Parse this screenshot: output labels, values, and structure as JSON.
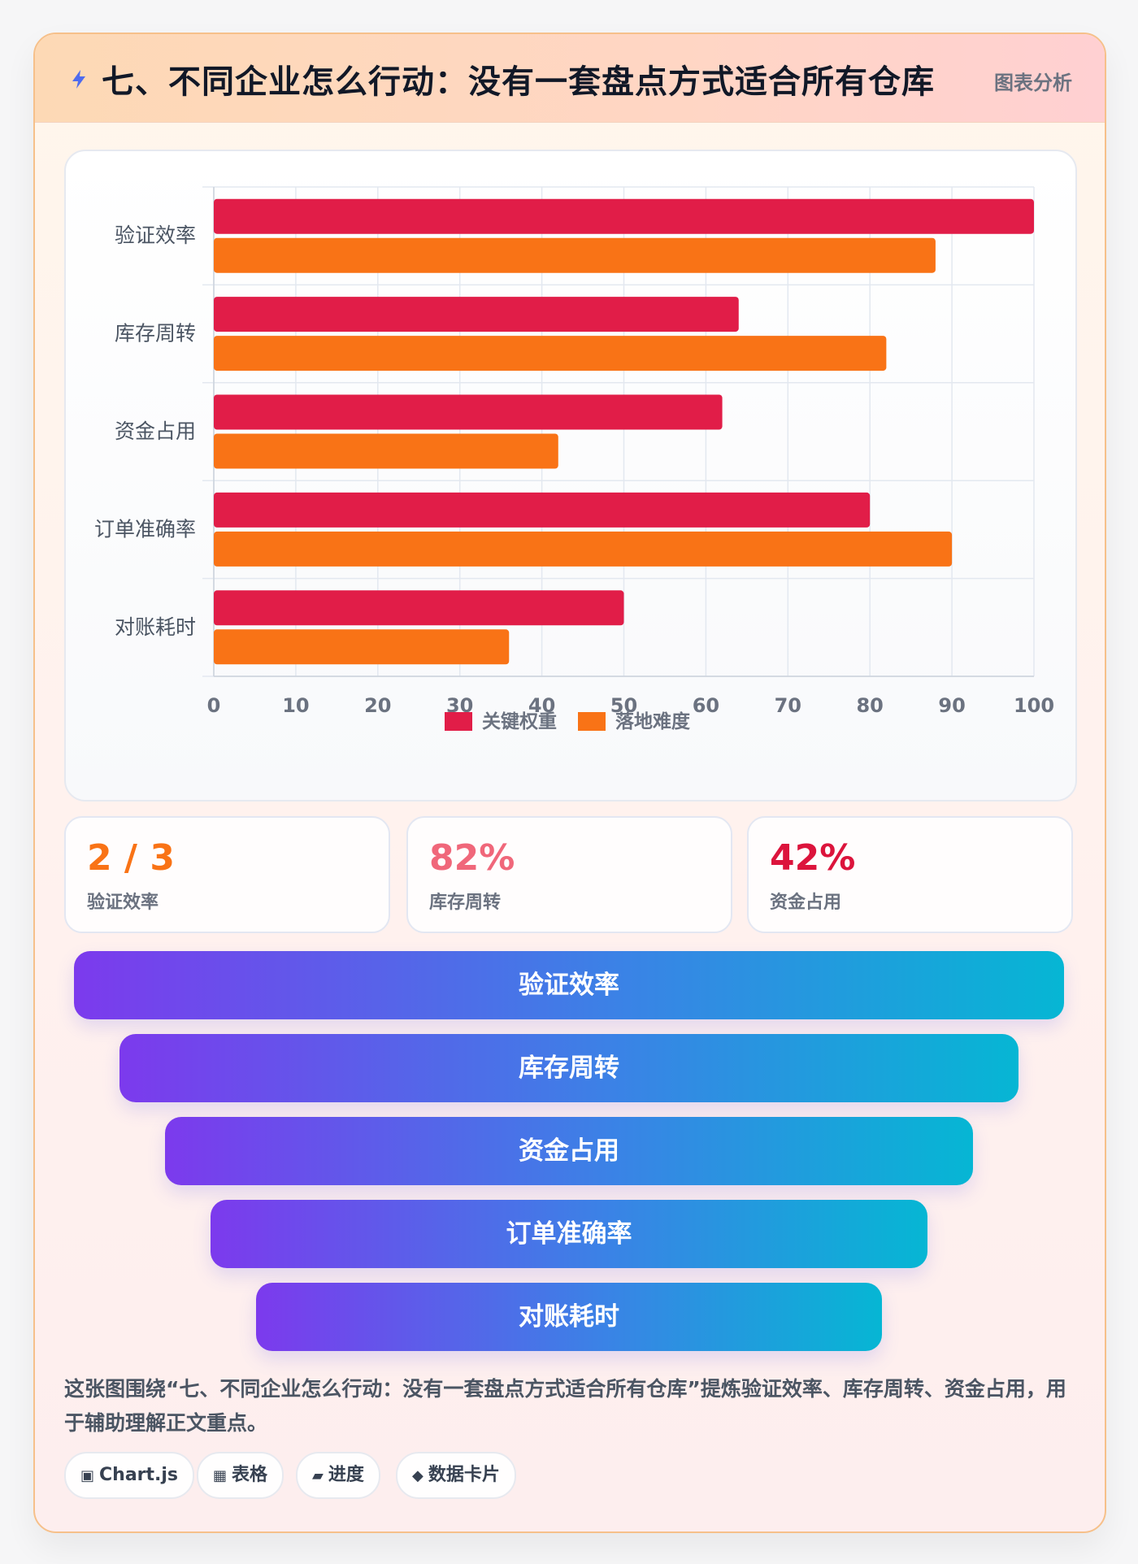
{
  "header": {
    "title": "七、不同企业怎么行动：没有一套盘点方式适合所有仓库",
    "tag": "图表分析",
    "icon": "bolt-icon"
  },
  "chart_data": {
    "type": "bar",
    "orientation": "horizontal",
    "categories": [
      "验证效率",
      "库存周转",
      "资金占用",
      "订单准确率",
      "对账耗时"
    ],
    "series": [
      {
        "name": "关键权重",
        "values": [
          100,
          64,
          62,
          80,
          50
        ],
        "color": "#e11d48"
      },
      {
        "name": "落地难度",
        "values": [
          88,
          82,
          42,
          90,
          36
        ],
        "color": "#f97316"
      }
    ],
    "xlim": [
      0,
      100
    ],
    "xticks": [
      0,
      10,
      20,
      30,
      40,
      50,
      60,
      70,
      80,
      90,
      100
    ],
    "grid": true,
    "legend": "bottom"
  },
  "stats": [
    {
      "value": "2 / 3",
      "label": "验证效率",
      "color": "#f97316"
    },
    {
      "value": "82%",
      "label": "库存周转",
      "color": "#f0677a"
    },
    {
      "value": "42%",
      "label": "资金占用",
      "color": "#dc143c"
    }
  ],
  "funnel": [
    "验证效率",
    "库存周转",
    "资金占用",
    "订单准确率",
    "对账耗时"
  ],
  "description": "这张图围绕“七、不同企业怎么行动：没有一套盘点方式适合所有仓库”提炼验证效率、库存周转、资金占用，用于辅助理解正文重点。",
  "chips": [
    {
      "icon": "▣",
      "label": "Chart.js"
    },
    {
      "icon": "▦",
      "label": "表格"
    },
    {
      "icon": "▰",
      "label": "进度"
    },
    {
      "icon": "◆",
      "label": "数据卡片"
    }
  ]
}
